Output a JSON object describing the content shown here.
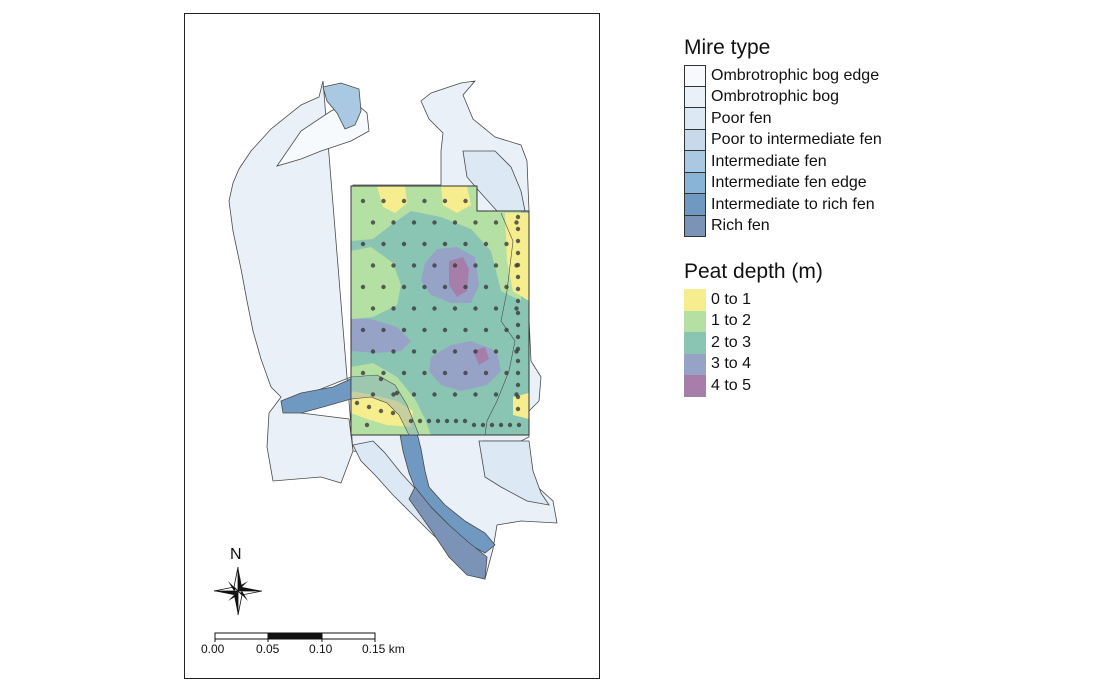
{
  "mire_legend": {
    "title": "Mire type",
    "items": [
      {
        "label": "Ombrotrophic bog edge",
        "color": "#f7fafd"
      },
      {
        "label": "Ombrotrophic bog",
        "color": "#e9f0f8"
      },
      {
        "label": "Poor fen",
        "color": "#dce8f4"
      },
      {
        "label": "Poor to intermediate fen",
        "color": "#c6daeb"
      },
      {
        "label": "Intermediate fen",
        "color": "#a9c9e2"
      },
      {
        "label": "Intermediate fen edge",
        "color": "#8ab4d7"
      },
      {
        "label": "Intermediate to rich fen",
        "color": "#7099c2"
      },
      {
        "label": "Rich fen",
        "color": "#7a93b6"
      }
    ]
  },
  "peat_legend": {
    "title": "Peat depth (m)",
    "items": [
      {
        "label": "0 to 1",
        "color": "#f6ed8e"
      },
      {
        "label": "1 to 2",
        "color": "#b5e0a3"
      },
      {
        "label": "2 to 3",
        "color": "#8ac4b3"
      },
      {
        "label": "3 to 4",
        "color": "#97a3c6"
      },
      {
        "label": "4 to 5",
        "color": "#a77ea9"
      }
    ]
  },
  "north_arrow": {
    "label": "N"
  },
  "scale_bar": {
    "unit": "km",
    "ticks": [
      "0.00",
      "0.05",
      "0.10",
      "0.15 km"
    ]
  },
  "map": {
    "sample_point_color": "#3a3a3a",
    "polygon_stroke": "#4a4a4a"
  }
}
